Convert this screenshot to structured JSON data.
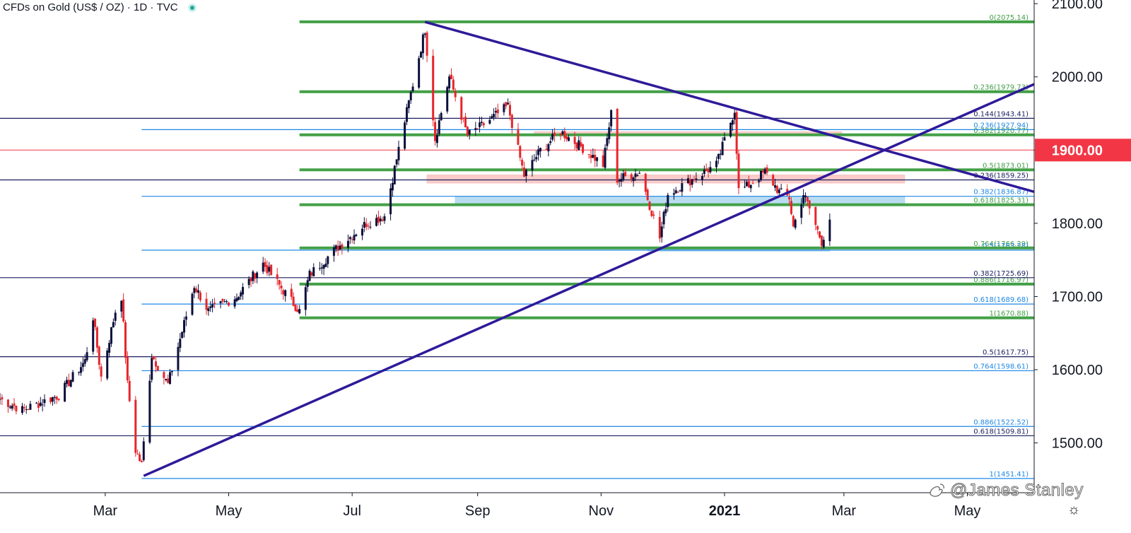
{
  "header": {
    "symbol": "CFDs on Gold (US$ / OZ)",
    "separator": " · ",
    "interval": "1D",
    "exchange": "TVC"
  },
  "watermark": "@James Stanley",
  "icons": {
    "settings": "gear-icon",
    "watermark": "weibo-icon",
    "status": "market-open-dot-icon"
  },
  "chart_data": {
    "type": "candlestick",
    "yaxis": {
      "ticks": [
        1500,
        1600,
        1700,
        1800,
        1900,
        2000,
        2100
      ],
      "tick_labels": [
        "1500.00",
        "1600.00",
        "1700.00",
        "1800.00",
        "1900.00",
        "2000.00",
        "2100.00"
      ],
      "range": [
        1432,
        2105
      ]
    },
    "xaxis": {
      "tick_labels": [
        "Mar",
        "May",
        "Jul",
        "Sep",
        "Nov",
        "2021",
        "Mar",
        "May"
      ],
      "tick_dates": [
        "2020-03-01",
        "2020-05-01",
        "2020-07-01",
        "2020-09-01",
        "2020-11-01",
        "2021-01-01",
        "2021-03-01",
        "2021-05-01"
      ],
      "range": [
        "2020-01-09",
        "2021-06-03"
      ]
    },
    "price_label": {
      "value": "1900.00",
      "level": 1900,
      "color": "#f23645"
    },
    "colors": {
      "up": "#0c0f3a",
      "down": "#e5262c",
      "green_fib": "#43a047",
      "blue_fib": "#1e88e5",
      "navy_fib": "#1a1f5e",
      "trendline": "#2e1a99",
      "zone_red": "#f8c3c1",
      "zone_blue": "#aed6ef"
    },
    "ohlc_anchors": [
      [
        "2020-01-09",
        1560
      ],
      [
        "2020-01-20",
        1545
      ],
      [
        "2020-02-07",
        1565
      ],
      [
        "2020-02-20",
        1612
      ],
      [
        "2020-02-24",
        1672
      ],
      [
        "2020-02-28",
        1590
      ],
      [
        "2020-03-06",
        1680
      ],
      [
        "2020-03-09",
        1700
      ],
      [
        "2020-03-12",
        1580
      ],
      [
        "2020-03-16",
        1490
      ],
      [
        "2020-03-19",
        1470
      ],
      [
        "2020-03-24",
        1620
      ],
      [
        "2020-04-01",
        1580
      ],
      [
        "2020-04-14",
        1715
      ],
      [
        "2020-04-21",
        1680
      ],
      [
        "2020-05-05",
        1700
      ],
      [
        "2020-05-18",
        1745
      ],
      [
        "2020-05-26",
        1715
      ],
      [
        "2020-06-05",
        1680
      ],
      [
        "2020-06-10",
        1730
      ],
      [
        "2020-06-23",
        1765
      ],
      [
        "2020-07-08",
        1800
      ],
      [
        "2020-07-17",
        1810
      ],
      [
        "2020-07-27",
        1940
      ],
      [
        "2020-08-06",
        2065
      ],
      [
        "2020-08-11",
        1915
      ],
      [
        "2020-08-18",
        2000
      ],
      [
        "2020-08-27",
        1920
      ],
      [
        "2020-09-04",
        1935
      ],
      [
        "2020-09-16",
        1960
      ],
      [
        "2020-09-24",
        1865
      ],
      [
        "2020-10-02",
        1900
      ],
      [
        "2020-10-12",
        1925
      ],
      [
        "2020-10-22",
        1905
      ],
      [
        "2020-11-02",
        1880
      ],
      [
        "2020-11-06",
        1950
      ],
      [
        "2020-11-09",
        1860
      ],
      [
        "2020-11-20",
        1870
      ],
      [
        "2020-11-30",
        1780
      ],
      [
        "2020-12-04",
        1840
      ],
      [
        "2020-12-16",
        1860
      ],
      [
        "2020-12-28",
        1880
      ],
      [
        "2021-01-06",
        1955
      ],
      [
        "2021-01-08",
        1845
      ],
      [
        "2021-01-12",
        1850
      ],
      [
        "2021-01-21",
        1870
      ],
      [
        "2021-01-28",
        1843
      ],
      [
        "2021-02-02",
        1835
      ],
      [
        "2021-02-04",
        1795
      ],
      [
        "2021-02-09",
        1840
      ],
      [
        "2021-02-12",
        1820
      ],
      [
        "2021-02-18",
        1775
      ],
      [
        "2021-02-22",
        1805
      ]
    ],
    "fib_levels": [
      {
        "label": "0(2075.14)",
        "value": 2075.14,
        "color": "green",
        "weight": "bold",
        "from": "2020-06-05"
      },
      {
        "label": "0.236(1979.73)",
        "value": 1979.73,
        "color": "green",
        "weight": "bold",
        "from": "2020-06-05"
      },
      {
        "label": "0.144(1943.41)",
        "value": 1943.41,
        "color": "navy",
        "weight": "thin",
        "from": "2020-01-09"
      },
      {
        "label": "0.236(1927.94)",
        "value": 1927.94,
        "color": "blue",
        "weight": "thin",
        "from": "2020-03-19"
      },
      {
        "label": "0.382(1920.77)",
        "value": 1920.77,
        "color": "green",
        "weight": "bold",
        "from": "2020-06-05"
      },
      {
        "label": "0.5(1873.01)",
        "value": 1873.01,
        "color": "green",
        "weight": "bold",
        "from": "2020-06-05"
      },
      {
        "label": "0.236(1859.25)",
        "value": 1859.25,
        "color": "navy",
        "weight": "thin",
        "from": "2020-01-09"
      },
      {
        "label": "0.382(1836.87)",
        "value": 1836.87,
        "color": "blue",
        "weight": "thin",
        "from": "2020-03-19"
      },
      {
        "label": "0.618(1825.31)",
        "value": 1825.31,
        "color": "green",
        "weight": "bold",
        "from": "2020-06-05"
      },
      {
        "label": "0.764(1766.29)",
        "value": 1766.29,
        "color": "green",
        "weight": "bold",
        "from": "2020-06-05"
      },
      {
        "label": "0.5(1763.28)",
        "value": 1763.28,
        "color": "blue",
        "weight": "thin",
        "from": "2020-03-19"
      },
      {
        "label": "0.382(1725.69)",
        "value": 1725.69,
        "color": "navy",
        "weight": "thin",
        "from": "2020-01-09"
      },
      {
        "label": "0.886(1716.97)",
        "value": 1716.97,
        "color": "green",
        "weight": "bold",
        "from": "2020-06-05"
      },
      {
        "label": "0.618(1689.68)",
        "value": 1689.68,
        "color": "blue",
        "weight": "thin",
        "from": "2020-03-19"
      },
      {
        "label": "1(1670.88)",
        "value": 1670.88,
        "color": "green",
        "weight": "bold",
        "from": "2020-06-05"
      },
      {
        "label": "0.5(1617.75)",
        "value": 1617.75,
        "color": "navy",
        "weight": "thin",
        "from": "2020-01-09"
      },
      {
        "label": "0.764(1598.61)",
        "value": 1598.61,
        "color": "blue",
        "weight": "thin",
        "from": "2020-03-19"
      },
      {
        "label": "0.886(1522.52)",
        "value": 1522.52,
        "color": "blue",
        "weight": "thin",
        "from": "2020-03-19"
      },
      {
        "label": "0.618(1509.81)",
        "value": 1509.81,
        "color": "navy",
        "weight": "thin",
        "from": "2020-01-09"
      },
      {
        "label": "1(1451.41)",
        "value": 1451.41,
        "color": "blue",
        "weight": "thin",
        "from": "2020-03-19"
      }
    ],
    "horizontal_line": {
      "value": 1900,
      "color": "#f23645"
    },
    "zones": [
      {
        "from": "2020-08-07",
        "to": "2021-03-31",
        "low": 1855,
        "high": 1866,
        "color": "zone_red"
      },
      {
        "from": "2020-09-29",
        "to": "2021-02-28",
        "low": 1920,
        "high": 1925,
        "color": "zone_red"
      },
      {
        "from": "2020-08-21",
        "to": "2021-03-31",
        "low": 1826,
        "high": 1837,
        "color": "zone_blue"
      },
      {
        "from": "2020-11-24",
        "to": "2021-02-22",
        "low": 1762,
        "high": 1765,
        "color": "zone_blue"
      }
    ],
    "trendlines": [
      {
        "from": [
          "2020-03-20",
          1455
        ],
        "to": [
          "2021-06-03",
          1990
        ],
        "color": "trendline"
      },
      {
        "from": [
          "2020-08-06",
          2075
        ],
        "to": [
          "2021-06-03",
          1843
        ],
        "color": "trendline"
      }
    ]
  }
}
